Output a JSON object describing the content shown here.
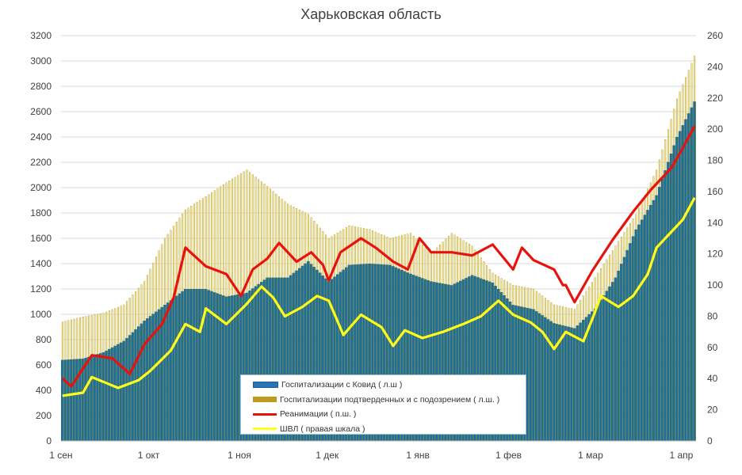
{
  "chart_data": {
    "type": "bar+line",
    "title": "Харьковская область",
    "x_range": [
      "09-01",
      "04-05"
    ],
    "x_ticks": [
      {
        "date": "09-01",
        "label": "1 сен"
      },
      {
        "date": "10-01",
        "label": "1 окт"
      },
      {
        "date": "11-01",
        "label": "1 ноя"
      },
      {
        "date": "12-01",
        "label": "1 дек"
      },
      {
        "date": "01-01",
        "label": "1 янв"
      },
      {
        "date": "02-01",
        "label": "1 фев"
      },
      {
        "date": "03-01",
        "label": "1 мар"
      },
      {
        "date": "04-01",
        "label": "1 апр"
      }
    ],
    "y_left": {
      "min": 0,
      "max": 3200,
      "step": 200,
      "ticks": [
        "0",
        "200",
        "400",
        "600",
        "800",
        "1000",
        "1200",
        "1400",
        "1600",
        "1800",
        "2000",
        "2200",
        "2400",
        "2600",
        "2800",
        "3000",
        "3200"
      ]
    },
    "y_right": {
      "min": 0,
      "max": 260,
      "step": 20,
      "ticks": [
        "0",
        "20",
        "40",
        "60",
        "80",
        "100",
        "120",
        "140",
        "160",
        "180",
        "200",
        "220",
        "240",
        "260"
      ]
    },
    "grid": true,
    "legend_position": "bottom-center",
    "series": [
      {
        "name": "Госпитализации подтверденных и с подозрением ( л.ш. )",
        "kind": "bar",
        "axis": "left",
        "color": "#c8a82c",
        "points": [
          [
            "09-01",
            940
          ],
          [
            "09-08",
            980
          ],
          [
            "09-15",
            1010
          ],
          [
            "09-22",
            1075
          ],
          [
            "09-29",
            1260
          ],
          [
            "10-06",
            1600
          ],
          [
            "10-13",
            1825
          ],
          [
            "10-20",
            1930
          ],
          [
            "10-27",
            2040
          ],
          [
            "11-03",
            2140
          ],
          [
            "11-10",
            2010
          ],
          [
            "11-17",
            1870
          ],
          [
            "11-24",
            1790
          ],
          [
            "12-01",
            1600
          ],
          [
            "12-08",
            1700
          ],
          [
            "12-15",
            1670
          ],
          [
            "12-22",
            1600
          ],
          [
            "12-29",
            1640
          ],
          [
            "01-05",
            1480
          ],
          [
            "01-12",
            1640
          ],
          [
            "01-19",
            1540
          ],
          [
            "01-26",
            1325
          ],
          [
            "02-02",
            1230
          ],
          [
            "02-09",
            1200
          ],
          [
            "02-16",
            1075
          ],
          [
            "02-23",
            1040
          ],
          [
            "03-02",
            1290
          ],
          [
            "03-09",
            1540
          ],
          [
            "03-16",
            1790
          ],
          [
            "03-23",
            2140
          ],
          [
            "03-30",
            2700
          ],
          [
            "04-05",
            3040
          ]
        ]
      },
      {
        "name": "Госпитализации с Ковид ( л.ш )",
        "kind": "bar",
        "axis": "left",
        "color": "#1f6d98",
        "points": [
          [
            "09-01",
            640
          ],
          [
            "09-08",
            650
          ],
          [
            "09-15",
            700
          ],
          [
            "09-22",
            790
          ],
          [
            "09-29",
            950
          ],
          [
            "10-06",
            1075
          ],
          [
            "10-13",
            1200
          ],
          [
            "10-20",
            1200
          ],
          [
            "10-27",
            1140
          ],
          [
            "11-03",
            1170
          ],
          [
            "11-10",
            1290
          ],
          [
            "11-17",
            1290
          ],
          [
            "11-24",
            1420
          ],
          [
            "12-01",
            1260
          ],
          [
            "12-08",
            1390
          ],
          [
            "12-15",
            1400
          ],
          [
            "12-22",
            1390
          ],
          [
            "12-29",
            1320
          ],
          [
            "01-05",
            1260
          ],
          [
            "01-12",
            1230
          ],
          [
            "01-19",
            1310
          ],
          [
            "01-26",
            1250
          ],
          [
            "02-02",
            1075
          ],
          [
            "02-09",
            1040
          ],
          [
            "02-16",
            930
          ],
          [
            "02-23",
            890
          ],
          [
            "03-02",
            1045
          ],
          [
            "03-09",
            1290
          ],
          [
            "03-16",
            1670
          ],
          [
            "03-23",
            1940
          ],
          [
            "03-30",
            2400
          ],
          [
            "04-05",
            2680
          ]
        ]
      },
      {
        "name": "Реанимации ( п.ш. )",
        "kind": "line",
        "axis": "right",
        "color": "#e8120c",
        "points": [
          [
            "09-01",
            40
          ],
          [
            "09-04",
            35
          ],
          [
            "09-11",
            55
          ],
          [
            "09-18",
            53
          ],
          [
            "09-24",
            43
          ],
          [
            "09-29",
            62
          ],
          [
            "10-05",
            75
          ],
          [
            "10-09",
            92
          ],
          [
            "10-13",
            124
          ],
          [
            "10-20",
            112
          ],
          [
            "10-27",
            107
          ],
          [
            "11-01",
            93
          ],
          [
            "11-05",
            110
          ],
          [
            "11-10",
            117
          ],
          [
            "11-14",
            127
          ],
          [
            "11-20",
            115
          ],
          [
            "11-25",
            121
          ],
          [
            "11-29",
            113
          ],
          [
            "12-01",
            103
          ],
          [
            "12-05",
            121
          ],
          [
            "12-12",
            130
          ],
          [
            "12-17",
            124
          ],
          [
            "12-23",
            115
          ],
          [
            "12-28",
            110
          ],
          [
            "01-01",
            130
          ],
          [
            "01-05",
            121
          ],
          [
            "01-12",
            121
          ],
          [
            "01-19",
            119
          ],
          [
            "01-26",
            126
          ],
          [
            "02-02",
            110
          ],
          [
            "02-05",
            124
          ],
          [
            "02-09",
            116
          ],
          [
            "02-16",
            110
          ],
          [
            "02-19",
            100
          ],
          [
            "02-20",
            100
          ],
          [
            "02-23",
            89
          ],
          [
            "03-01",
            109
          ],
          [
            "03-08",
            129
          ],
          [
            "03-15",
            147
          ],
          [
            "03-21",
            161
          ],
          [
            "03-28",
            175
          ],
          [
            "04-01",
            188
          ],
          [
            "04-05",
            202
          ]
        ]
      },
      {
        "name": "ШВЛ ( правая шкала )",
        "kind": "line",
        "axis": "right",
        "color": "#ffff1a",
        "points": [
          [
            "09-01",
            29
          ],
          [
            "09-08",
            31
          ],
          [
            "09-11",
            41
          ],
          [
            "09-20",
            34
          ],
          [
            "09-27",
            39
          ],
          [
            "10-01",
            45
          ],
          [
            "10-08",
            58
          ],
          [
            "10-13",
            75
          ],
          [
            "10-18",
            70
          ],
          [
            "10-20",
            85
          ],
          [
            "10-27",
            75
          ],
          [
            "11-03",
            88
          ],
          [
            "11-08",
            99
          ],
          [
            "11-12",
            92
          ],
          [
            "11-16",
            80
          ],
          [
            "11-22",
            86
          ],
          [
            "11-27",
            93
          ],
          [
            "12-01",
            90
          ],
          [
            "12-06",
            68
          ],
          [
            "12-12",
            81
          ],
          [
            "12-19",
            73
          ],
          [
            "12-23",
            61
          ],
          [
            "12-27",
            71
          ],
          [
            "01-02",
            66
          ],
          [
            "01-09",
            70
          ],
          [
            "01-16",
            75
          ],
          [
            "01-22",
            80
          ],
          [
            "01-28",
            90
          ],
          [
            "02-02",
            81
          ],
          [
            "02-08",
            76
          ],
          [
            "02-12",
            70
          ],
          [
            "02-16",
            59
          ],
          [
            "02-20",
            70
          ],
          [
            "02-26",
            64
          ],
          [
            "03-01",
            78
          ],
          [
            "03-04",
            93
          ],
          [
            "03-10",
            86
          ],
          [
            "03-15",
            93
          ],
          [
            "03-20",
            107
          ],
          [
            "03-23",
            124
          ],
          [
            "03-28",
            134
          ],
          [
            "04-01",
            142
          ],
          [
            "04-05",
            156
          ]
        ]
      }
    ]
  }
}
